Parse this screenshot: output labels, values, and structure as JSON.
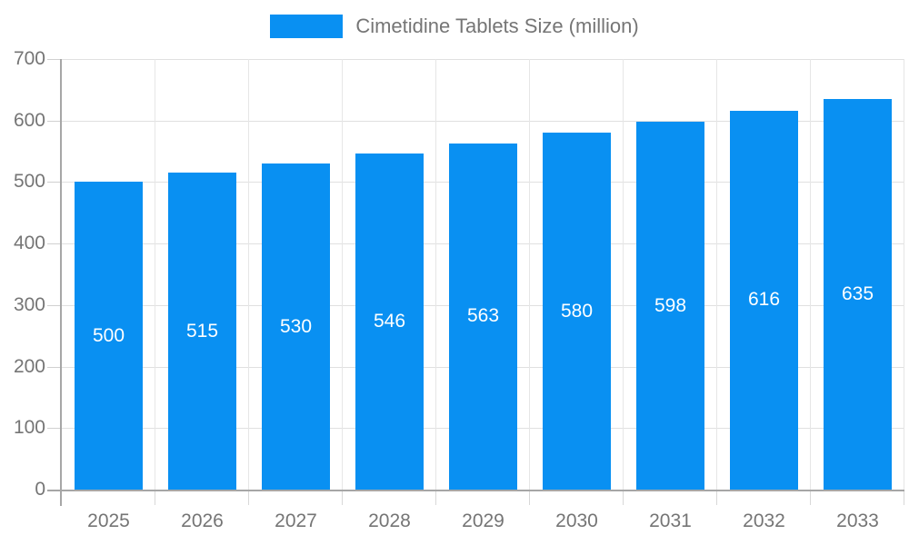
{
  "chart_data": {
    "type": "bar",
    "title": "Cimetidine Tablets Size (million)",
    "categories": [
      "2025",
      "2026",
      "2027",
      "2028",
      "2029",
      "2030",
      "2031",
      "2032",
      "2033"
    ],
    "values": [
      500,
      515,
      530,
      546,
      563,
      580,
      598,
      616,
      635
    ],
    "xlabel": "",
    "ylabel": "",
    "ylim": [
      0,
      700
    ],
    "yticks": [
      0,
      100,
      200,
      300,
      400,
      500,
      600,
      700
    ],
    "grid": true,
    "legend_position": "top-center",
    "bar_color": "#0990f2",
    "bar_label_color": "#ffffff",
    "axis_text_color": "#757575",
    "gridline_color": "#e0e0e0",
    "axis_line_color": "#a6a6a6",
    "background_color": "#ffffff"
  }
}
